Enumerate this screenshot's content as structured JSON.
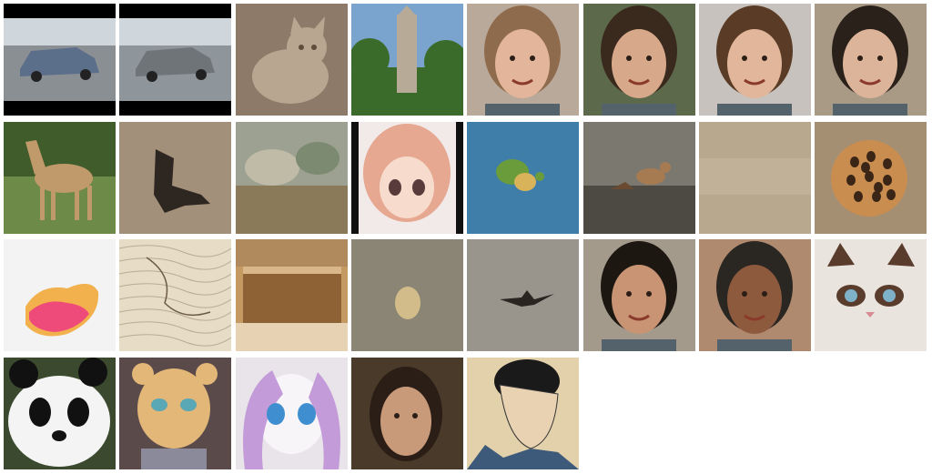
{
  "grid": {
    "rows": 4,
    "columns": 8,
    "tiles": [
      {
        "subject": "sedan-car-icon",
        "colors": [
          "#000000",
          "#5b6e8a",
          "#8a8f94"
        ]
      },
      {
        "subject": "sedan-car-icon",
        "colors": [
          "#000000",
          "#6f7478",
          "#8f969b"
        ]
      },
      {
        "subject": "tabby-cat-icon",
        "colors": [
          "#8d7a68",
          "#b8a690",
          "#5f4d3b"
        ]
      },
      {
        "subject": "church-tower-icon",
        "colors": [
          "#7aa4cd",
          "#3b6b2a",
          "#b7aa97"
        ]
      },
      {
        "subject": "woman-face-icon",
        "colors": [
          "#b9a99a",
          "#8f6b4e",
          "#e3b59a"
        ]
      },
      {
        "subject": "woman-face-icon",
        "colors": [
          "#5c6a4b",
          "#3a2a1e",
          "#d8a88a"
        ]
      },
      {
        "subject": "woman-face-icon",
        "colors": [
          "#c7c2bd",
          "#5a3b25",
          "#e2b69a"
        ]
      },
      {
        "subject": "man-face-icon",
        "colors": [
          "#a89a84",
          "#2b211b",
          "#dcb49a"
        ]
      },
      {
        "subject": "horse-icon",
        "colors": [
          "#6e8a49",
          "#c19a6b",
          "#3f5c2a"
        ]
      },
      {
        "subject": "abstract-dark-shape-icon",
        "colors": [
          "#a3907a",
          "#2e2620",
          "#c1ad92"
        ]
      },
      {
        "subject": "landscape-painting-icon",
        "colors": [
          "#9da191",
          "#8a7a5a",
          "#c9c2ac"
        ]
      },
      {
        "subject": "anime-girl-icon",
        "colors": [
          "#f1eae9",
          "#e6a890",
          "#111111"
        ]
      },
      {
        "subject": "island-map-icon",
        "colors": [
          "#3f7ea8",
          "#6b9c3c",
          "#d9b35a"
        ]
      },
      {
        "subject": "bird-on-ground-icon",
        "colors": [
          "#7a786f",
          "#a77b52",
          "#4d4a44"
        ]
      },
      {
        "subject": "sand-texture-icon",
        "colors": [
          "#b8a88e",
          "#c6b89f",
          "#a99880"
        ]
      },
      {
        "subject": "lotus-pod-icon",
        "colors": [
          "#a58f73",
          "#c98d4f",
          "#3a2516"
        ]
      },
      {
        "subject": "abstract-colorful-shape-icon",
        "colors": [
          "#f3f3f3",
          "#ef4b7a",
          "#f2b14c"
        ]
      },
      {
        "subject": "old-map-icon",
        "colors": [
          "#e7dcc5",
          "#8a7b63",
          "#cdbd9e"
        ]
      },
      {
        "subject": "cake-slice-icon",
        "colors": [
          "#c59a62",
          "#8f6236",
          "#e7d3b4"
        ]
      },
      {
        "subject": "blurry-object-icon",
        "colors": [
          "#8b8575",
          "#d9c38d",
          "#6f6a5d"
        ]
      },
      {
        "subject": "flying-bird-icon",
        "colors": [
          "#9a958c",
          "#2a2520",
          "#b3aea4"
        ]
      },
      {
        "subject": "man-face-icon",
        "colors": [
          "#a39a8c",
          "#1d1712",
          "#c99474"
        ]
      },
      {
        "subject": "man-face-icon",
        "colors": [
          "#b08a6f",
          "#2a2622",
          "#8e5a3e"
        ]
      },
      {
        "subject": "grumpy-cat-icon",
        "colors": [
          "#e9e4de",
          "#5a3c2d",
          "#7fb2c9"
        ]
      },
      {
        "subject": "panda-icon",
        "colors": [
          "#3b4a2f",
          "#f4f4f4",
          "#111111"
        ]
      },
      {
        "subject": "cartoon-lioness-icon",
        "colors": [
          "#5a4a4a",
          "#e2b778",
          "#5aa7b5"
        ]
      },
      {
        "subject": "cartoon-pony-icon",
        "colors": [
          "#e8e4ea",
          "#c49bd9",
          "#3f8fd0"
        ]
      },
      {
        "subject": "painted-woman-portrait-icon",
        "colors": [
          "#4a3a2a",
          "#c99a7a",
          "#2b1e16"
        ]
      },
      {
        "subject": "ukiyo-e-portrait-icon",
        "colors": [
          "#e2d1aa",
          "#1a1a1a",
          "#e9d2b2"
        ]
      }
    ]
  }
}
